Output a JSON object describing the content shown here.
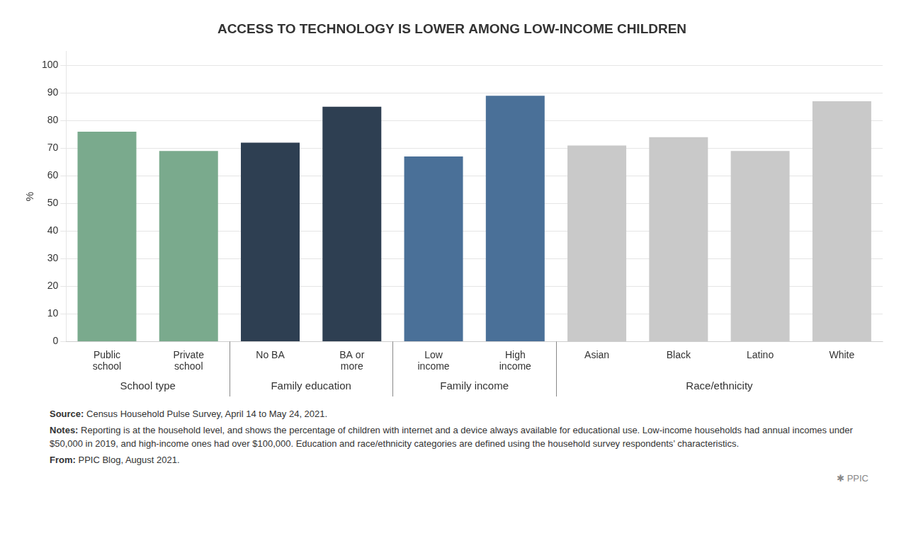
{
  "chart_data": {
    "type": "bar",
    "title": "ACCESS TO TECHNOLOGY IS LOWER AMONG LOW-INCOME CHILDREN",
    "categories": [
      "Public\nschool",
      "Private\nschool",
      "No BA",
      "BA or\nmore",
      "Low\nincome",
      "High\nincome",
      "Asian",
      "Black",
      "Latino",
      "White"
    ],
    "values": [
      76,
      69,
      72,
      85,
      67,
      89,
      71,
      74,
      69,
      87
    ],
    "colors": [
      "#7aaa8d",
      "#7aaa8d",
      "#2e3f52",
      "#2e3f52",
      "#4a7098",
      "#4a7098",
      "#c9c9c9",
      "#c9c9c9",
      "#c9c9c9",
      "#c9c9c9"
    ],
    "groups": [
      "School type",
      "School type",
      "Family education",
      "Family education",
      "Family income",
      "Family income",
      "Race/ethnicity",
      "Race/ethnicity",
      "Race/ethnicity",
      "Race/ethnicity"
    ],
    "ylabel": "%",
    "ylim": [
      0,
      105
    ],
    "yticks": [
      0,
      10,
      20,
      30,
      40,
      50,
      60,
      70,
      80,
      90,
      100
    ],
    "grid": true,
    "annotations": [
      {
        "label": "Source:",
        "text": " Census Household Pulse Survey, April 14 to May 24, 2021."
      },
      {
        "label": "Notes:",
        "text": " Reporting is at the household level, and shows the percentage of children with internet and a device always available for educational use. Low-income households had annual incomes under $50,000 in 2019, and high-income ones had over $100,000. Education and race/ethnicity categories are defined using the household survey respondents’ characteristics."
      },
      {
        "label": "From:",
        "text": " PPIC Blog, August 2021."
      },
      {
        "text": "✱  PPIC"
      }
    ]
  }
}
